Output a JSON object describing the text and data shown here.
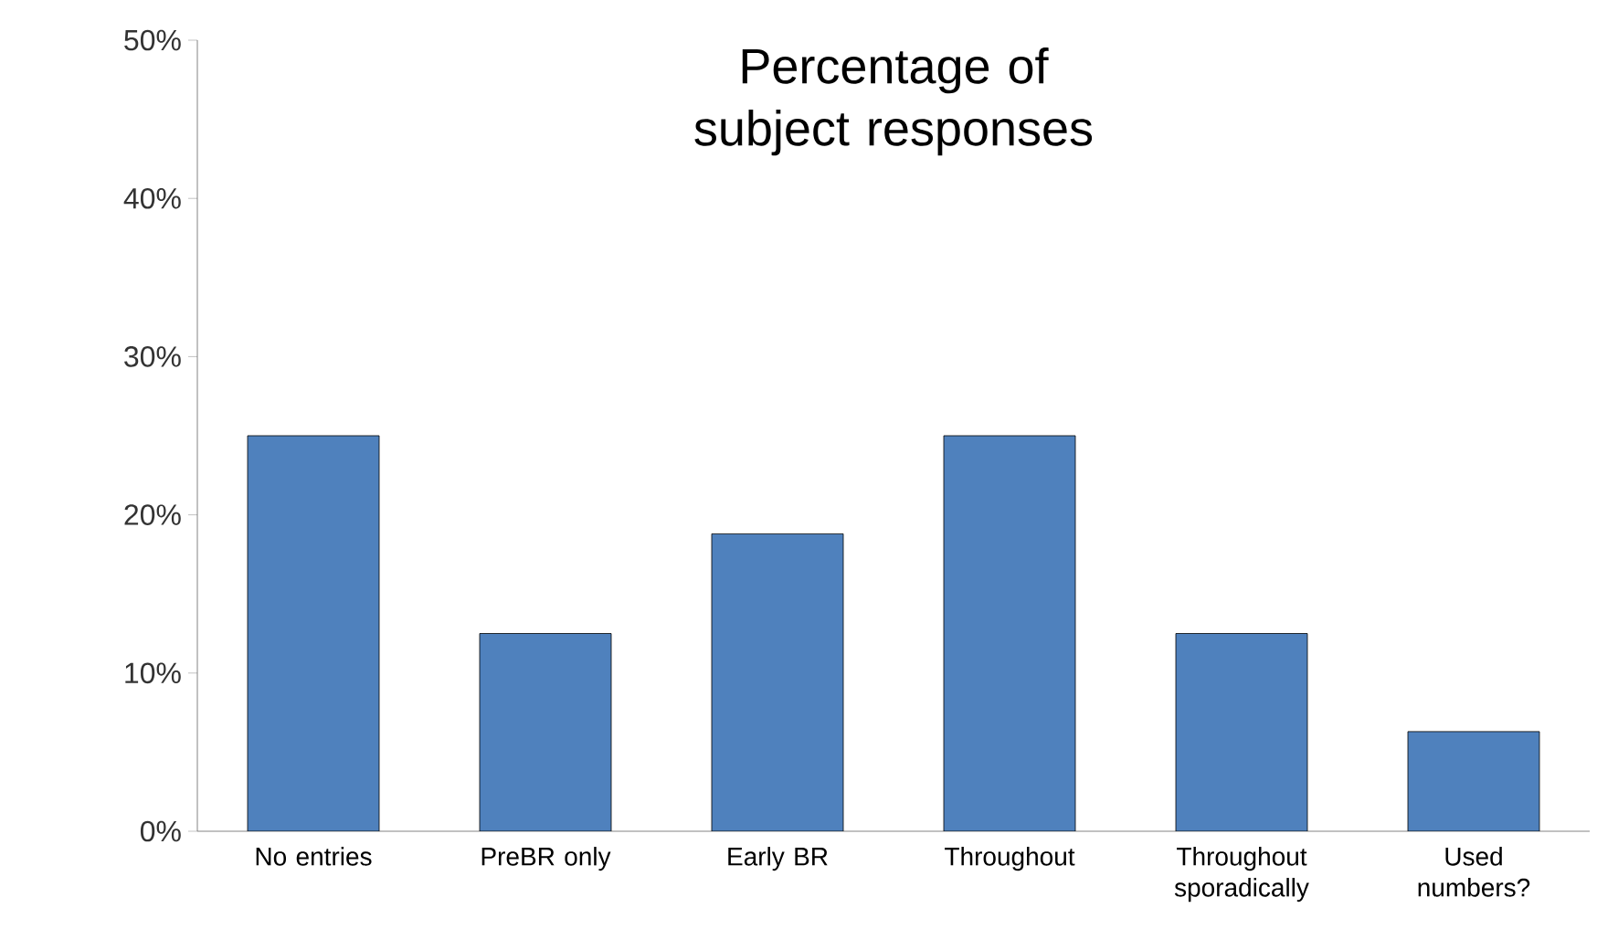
{
  "chart_data": {
    "type": "bar",
    "title": "Percentage of subject responses",
    "categories": [
      "No entries",
      "PreBR only",
      "Early BR",
      "Throughout",
      "Throughout sporadically",
      "Used numbers?"
    ],
    "values": [
      25,
      12.5,
      18.8,
      25,
      12.5,
      6.3
    ],
    "color": "#4f81bd",
    "ylim": [
      0,
      50
    ],
    "yticks": [
      {
        "value": 0,
        "label": "0%"
      },
      {
        "value": 10,
        "label": "10%"
      },
      {
        "value": 20,
        "label": "20%"
      },
      {
        "value": 30,
        "label": "30%"
      },
      {
        "value": 40,
        "label": "40%"
      },
      {
        "value": 50,
        "label": "50%"
      }
    ],
    "grid": false
  }
}
